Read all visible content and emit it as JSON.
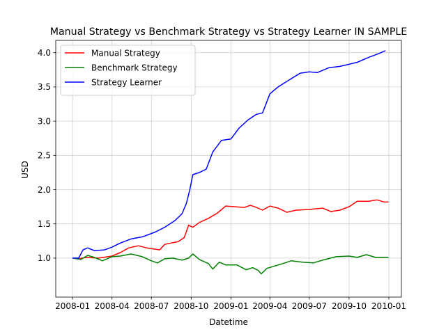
{
  "chart_data": {
    "type": "line",
    "title": "Manual Strategy vs Benchmark Strategy vs Strategy Learner IN SAMPLE",
    "xlabel": "Datetime",
    "ylabel": "USD",
    "xlim": [
      "2007-11-23",
      "2010-01-30"
    ],
    "ylim": [
      0.43,
      4.18
    ],
    "x_ticks": [
      "2008-01",
      "2008-04",
      "2008-07",
      "2008-10",
      "2009-01",
      "2009-04",
      "2009-07",
      "2009-10",
      "2010-01"
    ],
    "y_ticks": [
      1.0,
      1.5,
      2.0,
      2.5,
      3.0,
      3.5,
      4.0
    ],
    "y_tick_labels": [
      "1.0",
      "1.5",
      "2.0",
      "2.5",
      "3.0",
      "3.5",
      "4.0"
    ],
    "grid": true,
    "legend_position": "upper-left",
    "series": [
      {
        "name": "Manual Strategy",
        "color": "#ff0000",
        "points": [
          [
            "2008-01-01",
            1.0
          ],
          [
            "2008-01-15",
            0.99
          ],
          [
            "2008-02-01",
            1.01
          ],
          [
            "2008-03-01",
            1.0
          ],
          [
            "2008-04-01",
            1.03
          ],
          [
            "2008-04-20",
            1.08
          ],
          [
            "2008-05-10",
            1.15
          ],
          [
            "2008-06-01",
            1.18
          ],
          [
            "2008-06-20",
            1.15
          ],
          [
            "2008-07-10",
            1.13
          ],
          [
            "2008-07-20",
            1.12
          ],
          [
            "2008-08-01",
            1.2
          ],
          [
            "2008-08-15",
            1.22
          ],
          [
            "2008-09-01",
            1.24
          ],
          [
            "2008-09-15",
            1.3
          ],
          [
            "2008-09-25",
            1.48
          ],
          [
            "2008-10-05",
            1.45
          ],
          [
            "2008-10-20",
            1.52
          ],
          [
            "2008-11-10",
            1.58
          ],
          [
            "2008-12-01",
            1.66
          ],
          [
            "2008-12-20",
            1.76
          ],
          [
            "2009-01-10",
            1.75
          ],
          [
            "2009-02-01",
            1.74
          ],
          [
            "2009-02-15",
            1.77
          ],
          [
            "2009-03-01",
            1.74
          ],
          [
            "2009-03-15",
            1.7
          ],
          [
            "2009-04-01",
            1.76
          ],
          [
            "2009-04-20",
            1.73
          ],
          [
            "2009-05-10",
            1.67
          ],
          [
            "2009-06-01",
            1.7
          ],
          [
            "2009-07-01",
            1.71
          ],
          [
            "2009-08-01",
            1.73
          ],
          [
            "2009-08-20",
            1.68
          ],
          [
            "2009-09-10",
            1.7
          ],
          [
            "2009-10-01",
            1.75
          ],
          [
            "2009-10-20",
            1.83
          ],
          [
            "2009-11-15",
            1.83
          ],
          [
            "2009-12-05",
            1.85
          ],
          [
            "2009-12-20",
            1.82
          ],
          [
            "2009-12-31",
            1.82
          ]
        ]
      },
      {
        "name": "Benchmark Strategy",
        "color": "#008000",
        "points": [
          [
            "2008-01-01",
            1.0
          ],
          [
            "2008-01-20",
            0.98
          ],
          [
            "2008-02-05",
            1.04
          ],
          [
            "2008-02-20",
            1.01
          ],
          [
            "2008-03-10",
            0.96
          ],
          [
            "2008-04-01",
            1.02
          ],
          [
            "2008-04-20",
            1.03
          ],
          [
            "2008-05-15",
            1.06
          ],
          [
            "2008-06-10",
            1.02
          ],
          [
            "2008-07-01",
            0.96
          ],
          [
            "2008-07-15",
            0.93
          ],
          [
            "2008-08-01",
            0.99
          ],
          [
            "2008-08-20",
            1.0
          ],
          [
            "2008-09-10",
            0.97
          ],
          [
            "2008-09-25",
            1.0
          ],
          [
            "2008-10-05",
            1.06
          ],
          [
            "2008-10-20",
            0.98
          ],
          [
            "2008-11-10",
            0.92
          ],
          [
            "2008-11-20",
            0.84
          ],
          [
            "2008-12-05",
            0.94
          ],
          [
            "2008-12-20",
            0.9
          ],
          [
            "2009-01-15",
            0.9
          ],
          [
            "2009-02-05",
            0.83
          ],
          [
            "2009-02-20",
            0.86
          ],
          [
            "2009-03-05",
            0.82
          ],
          [
            "2009-03-12",
            0.77
          ],
          [
            "2009-03-25",
            0.85
          ],
          [
            "2009-04-10",
            0.88
          ],
          [
            "2009-05-01",
            0.92
          ],
          [
            "2009-05-20",
            0.96
          ],
          [
            "2009-06-15",
            0.94
          ],
          [
            "2009-07-10",
            0.93
          ],
          [
            "2009-08-01",
            0.97
          ],
          [
            "2009-09-01",
            1.02
          ],
          [
            "2009-10-01",
            1.03
          ],
          [
            "2009-10-20",
            1.01
          ],
          [
            "2009-11-10",
            1.05
          ],
          [
            "2009-12-01",
            1.01
          ],
          [
            "2009-12-31",
            1.01
          ]
        ]
      },
      {
        "name": "Strategy Learner",
        "color": "#0000ff",
        "points": [
          [
            "2008-01-01",
            1.0
          ],
          [
            "2008-01-15",
            1.0
          ],
          [
            "2008-01-25",
            1.12
          ],
          [
            "2008-02-05",
            1.15
          ],
          [
            "2008-02-20",
            1.11
          ],
          [
            "2008-03-15",
            1.12
          ],
          [
            "2008-04-01",
            1.16
          ],
          [
            "2008-04-20",
            1.22
          ],
          [
            "2008-05-15",
            1.28
          ],
          [
            "2008-06-10",
            1.31
          ],
          [
            "2008-07-10",
            1.38
          ],
          [
            "2008-08-01",
            1.45
          ],
          [
            "2008-08-25",
            1.55
          ],
          [
            "2008-09-10",
            1.65
          ],
          [
            "2008-09-20",
            1.8
          ],
          [
            "2008-09-28",
            2.0
          ],
          [
            "2008-10-05",
            2.22
          ],
          [
            "2008-10-20",
            2.25
          ],
          [
            "2008-11-05",
            2.3
          ],
          [
            "2008-11-20",
            2.55
          ],
          [
            "2008-12-10",
            2.72
          ],
          [
            "2009-01-01",
            2.74
          ],
          [
            "2009-01-20",
            2.9
          ],
          [
            "2009-02-10",
            3.02
          ],
          [
            "2009-03-01",
            3.1
          ],
          [
            "2009-03-15",
            3.12
          ],
          [
            "2009-04-01",
            3.4
          ],
          [
            "2009-04-20",
            3.5
          ],
          [
            "2009-05-15",
            3.6
          ],
          [
            "2009-06-10",
            3.7
          ],
          [
            "2009-07-01",
            3.72
          ],
          [
            "2009-07-20",
            3.71
          ],
          [
            "2009-08-15",
            3.78
          ],
          [
            "2009-09-10",
            3.8
          ],
          [
            "2009-10-01",
            3.83
          ],
          [
            "2009-10-20",
            3.86
          ],
          [
            "2009-11-15",
            3.93
          ],
          [
            "2009-12-10",
            3.99
          ],
          [
            "2009-12-24",
            4.03
          ]
        ]
      }
    ]
  }
}
